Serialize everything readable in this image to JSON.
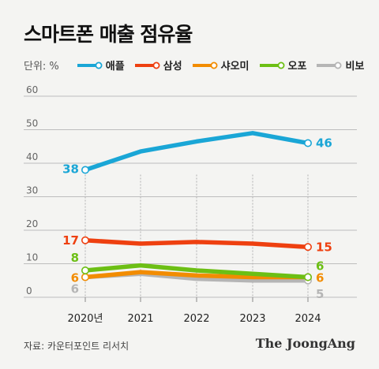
{
  "title": "스마트폰 매출 점유율",
  "unit_label": "단위: %",
  "source": "자료: 카운터포인트 리서치",
  "brand": "The JoongAng",
  "chart_data": {
    "type": "line",
    "x": [
      "2020년",
      "2021",
      "2022",
      "2023",
      "2024"
    ],
    "ylim": [
      0,
      60
    ],
    "yticks": [
      0,
      10,
      20,
      30,
      40,
      50,
      60
    ],
    "grid": true,
    "legend_position": "top-left",
    "series": [
      {
        "name": "애플",
        "color": "#1aa6d6",
        "values": [
          38,
          43.5,
          46.5,
          49,
          46
        ],
        "start_label": "38",
        "end_label": "46"
      },
      {
        "name": "삼성",
        "color": "#ee4010",
        "values": [
          17,
          16,
          16.5,
          16,
          15
        ],
        "start_label": "17",
        "end_label": "15"
      },
      {
        "name": "샤오미",
        "color": "#f28c00",
        "values": [
          6,
          7.5,
          6.5,
          6,
          6
        ],
        "start_label": "6",
        "end_label": "6"
      },
      {
        "name": "오포",
        "color": "#6cbf14",
        "values": [
          8,
          9.5,
          8,
          7,
          6
        ],
        "start_label": "8",
        "end_label": "6"
      },
      {
        "name": "비보",
        "color": "#b5b5b5",
        "values": [
          6,
          7,
          5.5,
          5,
          5
        ],
        "start_label": "6",
        "end_label": "5"
      }
    ]
  }
}
